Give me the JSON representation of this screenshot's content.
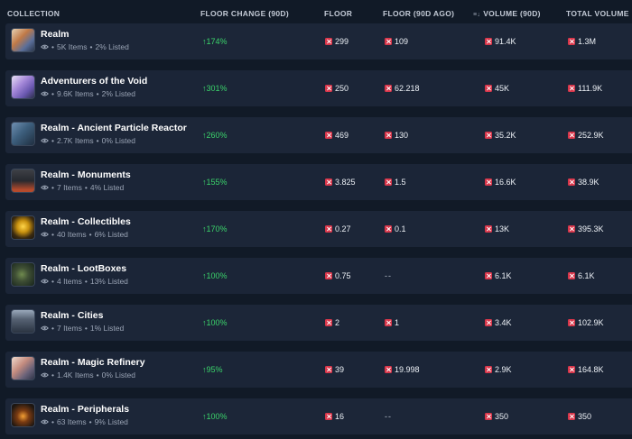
{
  "header": {
    "collection": "COLLECTION",
    "floor_change": "FLOOR CHANGE (90D)",
    "floor": "FLOOR",
    "floor_90d_ago": "FLOOR (90D AGO)",
    "volume_90d": "VOLUME (90D)",
    "total_volume": "TOTAL VOLUME",
    "sort_icon": "sort-icon"
  },
  "colors": {
    "background": "#111a27",
    "row": "#1b2537",
    "positive": "#3bd46b",
    "currency": "#d8364a"
  },
  "rows": [
    {
      "name": "Realm",
      "items": "5K Items",
      "listed": "2% Listed",
      "change": "↑174%",
      "floor": "299",
      "floor_ago": "109",
      "volume": "91.4K",
      "total": "1.3M"
    },
    {
      "name": "Adventurers of the Void",
      "items": "9.6K Items",
      "listed": "2% Listed",
      "change": "↑301%",
      "floor": "250",
      "floor_ago": "62.218",
      "volume": "45K",
      "total": "111.9K"
    },
    {
      "name": "Realm - Ancient Particle Reactor",
      "items": "2.7K Items",
      "listed": "0% Listed",
      "change": "↑260%",
      "floor": "469",
      "floor_ago": "130",
      "volume": "35.2K",
      "total": "252.9K"
    },
    {
      "name": "Realm - Monuments",
      "items": "7 Items",
      "listed": "4% Listed",
      "change": "↑155%",
      "floor": "3.825",
      "floor_ago": "1.5",
      "volume": "16.6K",
      "total": "38.9K"
    },
    {
      "name": "Realm - Collectibles",
      "items": "40 Items",
      "listed": "6% Listed",
      "change": "↑170%",
      "floor": "0.27",
      "floor_ago": "0.1",
      "volume": "13K",
      "total": "395.3K"
    },
    {
      "name": "Realm - LootBoxes",
      "items": "4 Items",
      "listed": "13% Listed",
      "change": "↑100%",
      "floor": "0.75",
      "floor_ago": "--",
      "volume": "6.1K",
      "total": "6.1K"
    },
    {
      "name": "Realm - Cities",
      "items": "7 Items",
      "listed": "1% Listed",
      "change": "↑100%",
      "floor": "2",
      "floor_ago": "1",
      "volume": "3.4K",
      "total": "102.9K"
    },
    {
      "name": "Realm - Magic Refinery",
      "items": "1.4K Items",
      "listed": "0% Listed",
      "change": "↑95%",
      "floor": "39",
      "floor_ago": "19.998",
      "volume": "2.9K",
      "total": "164.8K"
    },
    {
      "name": "Realm - Peripherals",
      "items": "63 Items",
      "listed": "9% Listed",
      "change": "↑100%",
      "floor": "16",
      "floor_ago": "--",
      "volume": "350",
      "total": "350"
    }
  ]
}
